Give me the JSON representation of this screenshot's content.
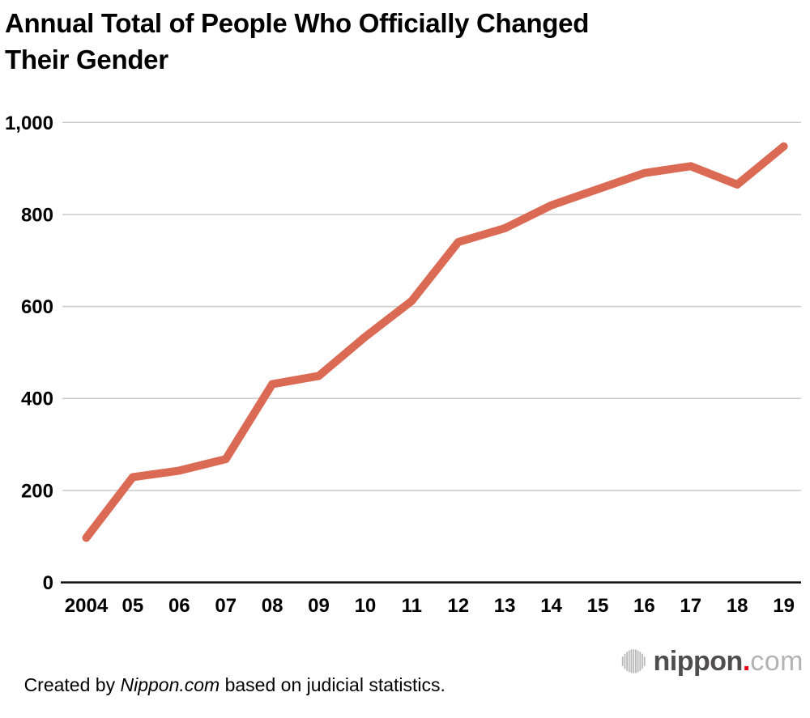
{
  "header": {
    "title_lines": [
      "Annual Total of People Who Officially Changed",
      "Their Gender"
    ]
  },
  "chart_data": {
    "type": "line",
    "title": "Annual Total of People Who Officially Changed Their Gender",
    "series_name": "People who officially changed their gender",
    "categories": [
      "2004",
      "05",
      "06",
      "07",
      "08",
      "09",
      "10",
      "11",
      "12",
      "13",
      "14",
      "15",
      "16",
      "17",
      "18",
      "19"
    ],
    "values": [
      97,
      229,
      243,
      268,
      431,
      449,
      534,
      612,
      740,
      770,
      820,
      855,
      890,
      905,
      865,
      948
    ],
    "xlabel": "",
    "ylabel": "",
    "ylim": [
      0,
      1000
    ],
    "yticks": {
      "values": [
        0,
        200,
        400,
        600,
        800,
        1000
      ],
      "labels": [
        "0",
        "200",
        "400",
        "600",
        "800",
        "1,000"
      ]
    },
    "grid": "horizontal-only",
    "legend": "none",
    "line_color": "#db6a54",
    "grid_color": "#c9c9c9",
    "axis_color": "#111111",
    "label_color": "#000000"
  },
  "footer": {
    "credit": {
      "prefix": "Created by ",
      "source": "Nippon.com",
      "suffix": " based on judicial statistics."
    },
    "logo": {
      "icon": "soundwave-bars-icon",
      "text_bold": "nippon",
      "dot": ".",
      "text_light": "com",
      "colors": {
        "text_bold": "#4f4d4d",
        "dot": "#e60012",
        "text_light": "#b3b3b4",
        "icon": "#b9b9b9"
      }
    }
  }
}
